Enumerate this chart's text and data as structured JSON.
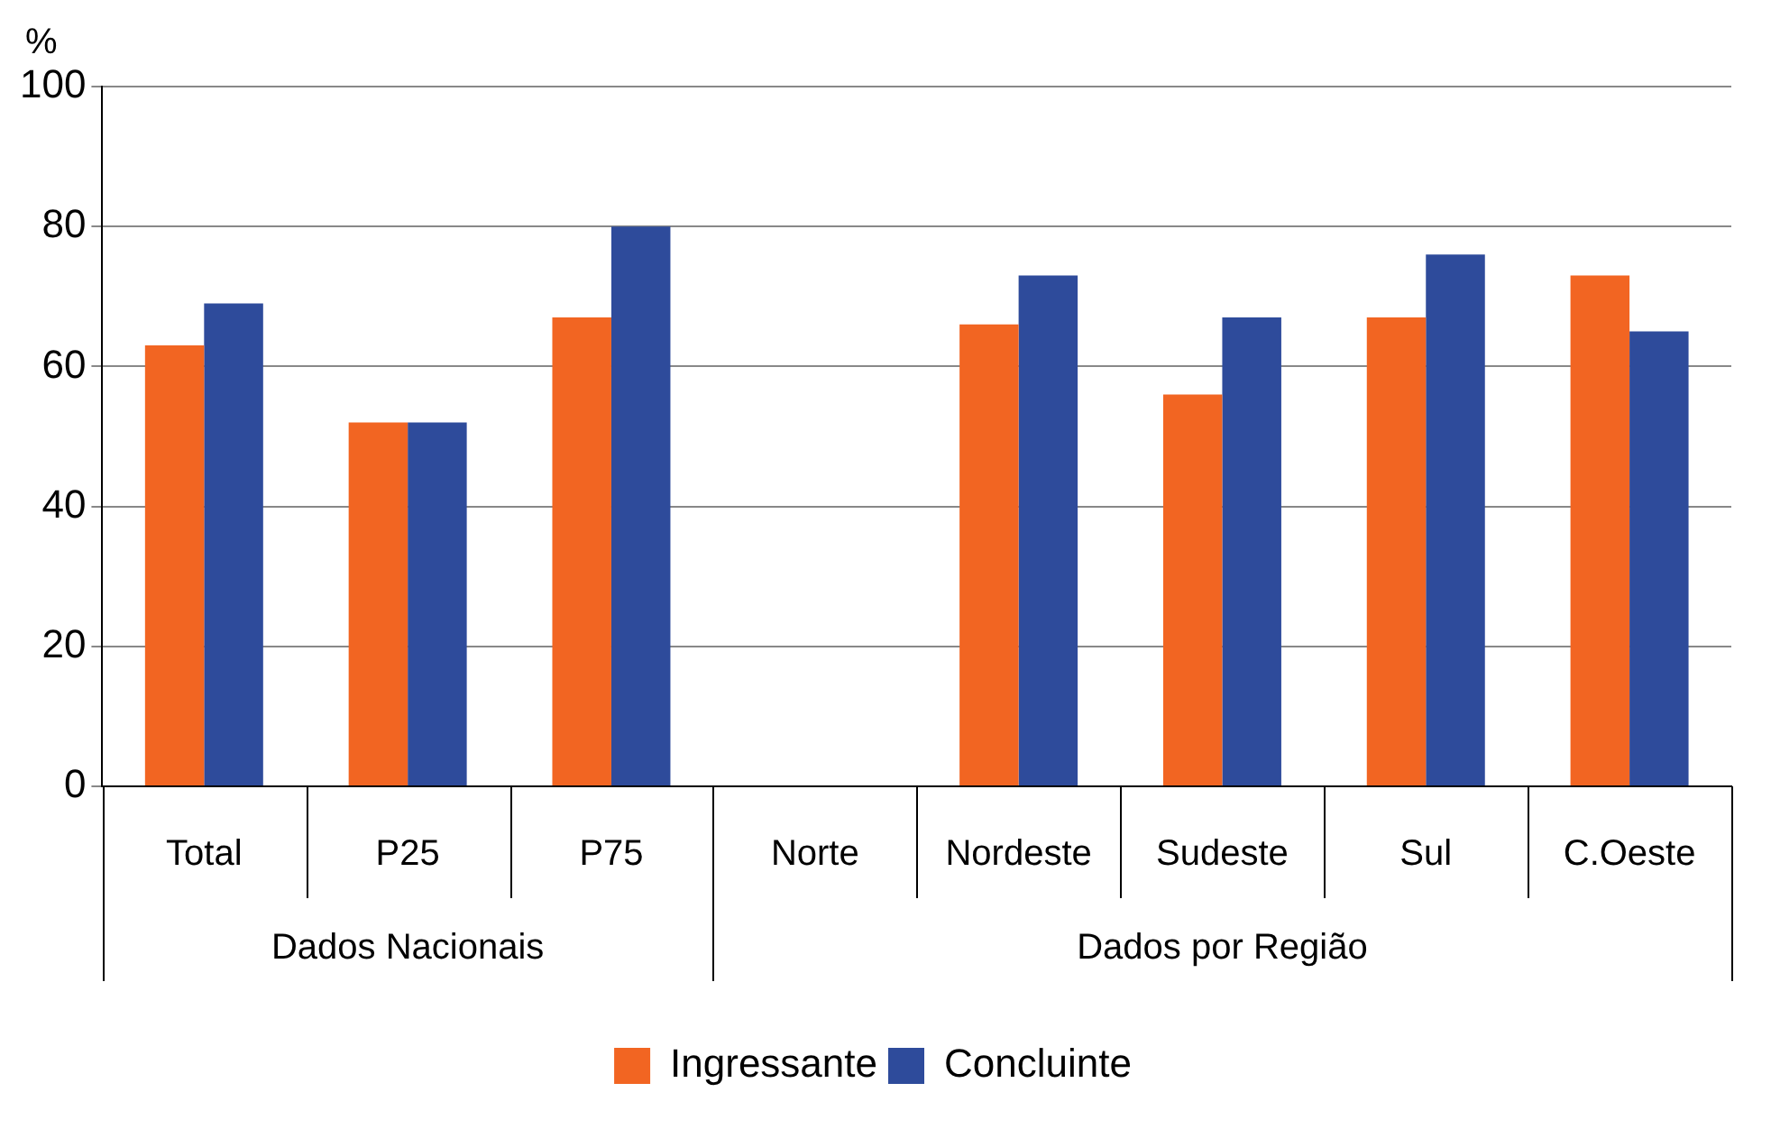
{
  "chart_data": {
    "type": "bar",
    "ylabel": "%",
    "categories": [
      "Total",
      "P25",
      "P75",
      "Norte",
      "Nordeste",
      "Sudeste",
      "Sul",
      "C.Oeste"
    ],
    "series": [
      {
        "name": "Ingressante",
        "color": "#f26522",
        "values": [
          63,
          52,
          67,
          null,
          66,
          56,
          67,
          73
        ]
      },
      {
        "name": "Concluinte",
        "color": "#2e4b9b",
        "values": [
          69,
          52,
          80,
          null,
          73,
          67,
          76,
          65
        ]
      }
    ],
    "ylim": [
      0,
      100
    ],
    "yticks": [
      0,
      20,
      40,
      60,
      80,
      100
    ],
    "grid": "y",
    "legend": "bottom",
    "annotations": [
      "Dados Nacionais",
      "Dados por Região"
    ]
  }
}
